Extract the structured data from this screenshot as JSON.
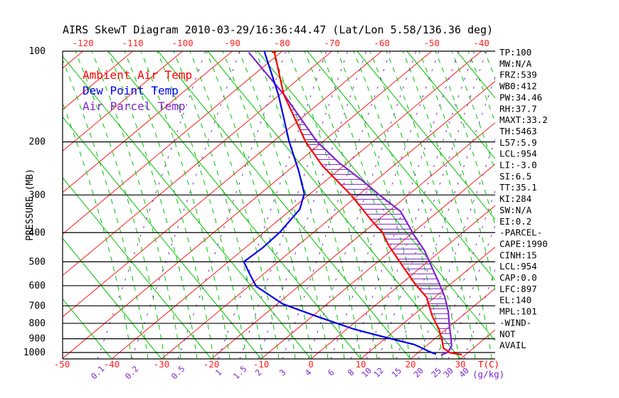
{
  "chart_data": {
    "type": "skewt",
    "title": "AIRS SkewT Diagram 2010-03-29/16:36:44.47 (Lat/Lon 5.58/136.36 deg)",
    "ylabel": "PRESSURE (MB)",
    "xlabel": "T(C)",
    "x2label": "(g/kg)",
    "pressure_ticks": [
      100,
      200,
      300,
      400,
      500,
      600,
      700,
      800,
      900,
      1000
    ],
    "temp_ticks_top": [
      -120,
      -110,
      -100,
      -90,
      -80,
      -70,
      -60,
      -50,
      -40
    ],
    "temp_ticks_bottom": [
      -50,
      -40,
      -30,
      -20,
      -10,
      0,
      10,
      20,
      30
    ],
    "mixing_ratio_ticks": [
      0.1,
      0.2,
      0.5,
      1,
      1.5,
      2,
      3,
      4,
      6,
      8,
      10,
      12,
      15,
      20,
      25,
      30,
      40
    ],
    "axis_ranges": {
      "pressure_mb": [
        100,
        1050
      ],
      "temp_c_bottom_scale": [
        -50,
        37
      ]
    },
    "grid": {
      "isotherms_every_c": 10,
      "legend_position": "top-left-inside"
    },
    "colors": {
      "ambient": "#FF0000",
      "dewpoint": "#0000EE",
      "parcel": "#7D26CD",
      "isotherm": "#FF2020",
      "adiabat": "#00C400",
      "mixing": "#7D26CD",
      "axis": "#000000",
      "background": "#FFFFFF"
    },
    "series": [
      {
        "name": "Ambient Air Temp",
        "color": "#FF0000",
        "points_p_t": [
          [
            100,
            -81.6
          ],
          [
            139,
            -69.3
          ],
          [
            200,
            -53.4
          ],
          [
            240,
            -44.3
          ],
          [
            300,
            -31.5
          ],
          [
            364,
            -21.3
          ],
          [
            400,
            -16.1
          ],
          [
            440,
            -11.9
          ],
          [
            505,
            -5.1
          ],
          [
            593,
            2.9
          ],
          [
            655,
            8.3
          ],
          [
            758,
            14.1
          ],
          [
            836,
            18.5
          ],
          [
            917,
            22.1
          ],
          [
            967,
            24.0
          ],
          [
            1002,
            26.5
          ],
          [
            1017,
            29.3
          ]
        ]
      },
      {
        "name": "Dew Point Temp",
        "color": "#0000EE",
        "points_p_t": [
          [
            100,
            -83.6
          ],
          [
            140,
            -70.1
          ],
          [
            200,
            -56.7
          ],
          [
            249,
            -47.9
          ],
          [
            297,
            -41.2
          ],
          [
            335,
            -38.3
          ],
          [
            400,
            -36.8
          ],
          [
            448,
            -36.5
          ],
          [
            500,
            -36.9
          ],
          [
            546,
            -33.0
          ],
          [
            603,
            -28.5
          ],
          [
            690,
            -18.9
          ],
          [
            763,
            -8.5
          ],
          [
            836,
            1.4
          ],
          [
            892,
            10.0
          ],
          [
            941,
            17.3
          ],
          [
            967,
            19.7
          ],
          [
            993,
            22.0
          ],
          [
            1013,
            24.0
          ]
        ]
      },
      {
        "name": "Air Parcel Temp",
        "color": "#7D26CD",
        "points_p_t": [
          [
            101,
            -86.4
          ],
          [
            140,
            -68.9
          ],
          [
            200,
            -51.1
          ],
          [
            234,
            -41.8
          ],
          [
            270,
            -32.4
          ],
          [
            300,
            -25.8
          ],
          [
            340,
            -17.6
          ],
          [
            410,
            -8.9
          ],
          [
            460,
            -3.2
          ],
          [
            525,
            2.5
          ],
          [
            585,
            7.2
          ],
          [
            655,
            12.0
          ],
          [
            730,
            16.1
          ],
          [
            815,
            19.8
          ],
          [
            880,
            22.5
          ],
          [
            950,
            25.1
          ],
          [
            998,
            25.9
          ],
          [
            1020,
            25.2
          ]
        ]
      }
    ],
    "cape_hatch": {
      "between": [
        "Air Parcel Temp",
        "Ambient Air Temp"
      ],
      "from_p": 145,
      "to_p": 960
    },
    "stats_panel": [
      "TP:100",
      "MW:N/A",
      "FRZ:539",
      "WB0:412",
      "PW:34.46",
      "RH:37.7",
      "MAXT:33.2",
      "TH:5463",
      "L57:5.9",
      "LCL:954",
      "LI:-3.0",
      "SI:6.5",
      "TT:35.1",
      "KI:284",
      "SW:N/A",
      "EI:0.2",
      "-PARCEL-",
      "CAPE:1990",
      "CINH:15",
      "LCL:954",
      "CAP:0.0",
      "LFC:897",
      "EL:140",
      "MPL:101",
      "-WIND-",
      "NOT",
      "AVAIL"
    ]
  }
}
